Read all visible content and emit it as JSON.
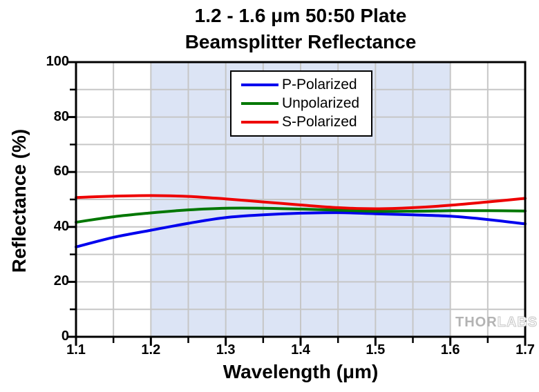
{
  "watermark": {
    "solid": "THOR",
    "outline": "LABS"
  },
  "chart_data": {
    "type": "line",
    "title": "1.2 - 1.6 μm 50:50 Plate Beamsplitter Reflectance",
    "title_lines": [
      "1.2 - 1.6 μm 50:50 Plate",
      "Beamsplitter Reflectance"
    ],
    "xlabel": "Wavelength (μm)",
    "ylabel": "Reflectance (%)",
    "xlim": [
      1.1,
      1.7
    ],
    "ylim": [
      0,
      100
    ],
    "x_major_ticks": [
      1.1,
      1.2,
      1.3,
      1.4,
      1.5,
      1.6,
      1.7
    ],
    "x_tick_labels": [
      "1.1",
      "1.2",
      "1.3",
      "1.4",
      "1.5",
      "1.6",
      "1.7"
    ],
    "y_major_ticks": [
      0,
      20,
      40,
      60,
      80,
      100
    ],
    "y_tick_labels": [
      "0",
      "20",
      "40",
      "60",
      "80",
      "100"
    ],
    "x_minor_step": 0.05,
    "y_minor_step": 10,
    "grid": true,
    "grid_color": "#c6c6c6",
    "frame_color": "#000000",
    "band": {
      "from": 1.2,
      "to": 1.6,
      "color": "#dce4f5"
    },
    "legend_position": "top-center",
    "x": [
      1.1,
      1.15,
      1.2,
      1.25,
      1.3,
      1.35,
      1.4,
      1.45,
      1.5,
      1.55,
      1.6,
      1.65,
      1.7
    ],
    "series": [
      {
        "name": "P-Polarized",
        "color": "#0000ee",
        "values": [
          32.7,
          36.2,
          38.8,
          41.3,
          43.4,
          44.4,
          45.0,
          45.2,
          44.8,
          44.4,
          43.9,
          42.7,
          41.1
        ]
      },
      {
        "name": "Unpolarized",
        "color": "#007700",
        "values": [
          41.7,
          43.7,
          45.1,
          46.2,
          46.8,
          46.8,
          46.5,
          46.1,
          45.7,
          45.7,
          45.9,
          45.9,
          45.8
        ]
      },
      {
        "name": "S-Polarized",
        "color": "#ee0000",
        "values": [
          50.7,
          51.2,
          51.4,
          51.1,
          50.2,
          49.1,
          48.0,
          47.0,
          46.6,
          47.0,
          47.9,
          49.1,
          50.4
        ]
      }
    ]
  }
}
